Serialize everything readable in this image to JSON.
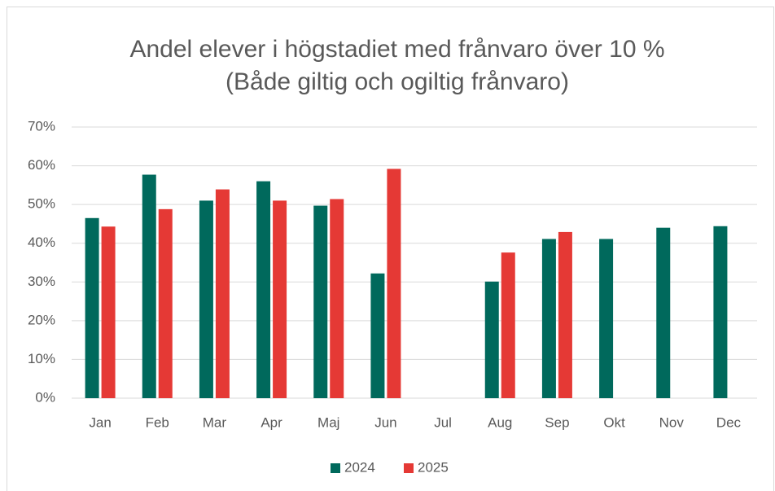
{
  "chart_data": {
    "type": "bar",
    "title": "Andel elever i högstadiet med frånvaro över 10 %",
    "subtitle": "(Både giltig och ogiltig frånvaro)",
    "categories": [
      "Jan",
      "Feb",
      "Mar",
      "Apr",
      "Maj",
      "Jun",
      "Jul",
      "Aug",
      "Sep",
      "Okt",
      "Nov",
      "Dec"
    ],
    "series": [
      {
        "name": "2024",
        "color": "#00695c",
        "values": [
          46.5,
          57.7,
          51,
          56,
          49.7,
          32.2,
          null,
          30.1,
          41.1,
          41.1,
          44,
          44.4
        ]
      },
      {
        "name": "2025",
        "color": "#e53935",
        "values": [
          44.3,
          48.8,
          53.9,
          51,
          51.4,
          59.2,
          null,
          37.6,
          42.9,
          null,
          null,
          null
        ]
      }
    ],
    "ylim": [
      0,
      70
    ],
    "yticks": [
      {
        "value": 0,
        "label": "0%"
      },
      {
        "value": 10,
        "label": "10%"
      },
      {
        "value": 20,
        "label": "20%"
      },
      {
        "value": 30,
        "label": "30%"
      },
      {
        "value": 40,
        "label": "40%"
      },
      {
        "value": 50,
        "label": "50%"
      },
      {
        "value": 60,
        "label": "60%"
      },
      {
        "value": 70,
        "label": "70%"
      }
    ],
    "grid": true,
    "legend": "bottom"
  }
}
